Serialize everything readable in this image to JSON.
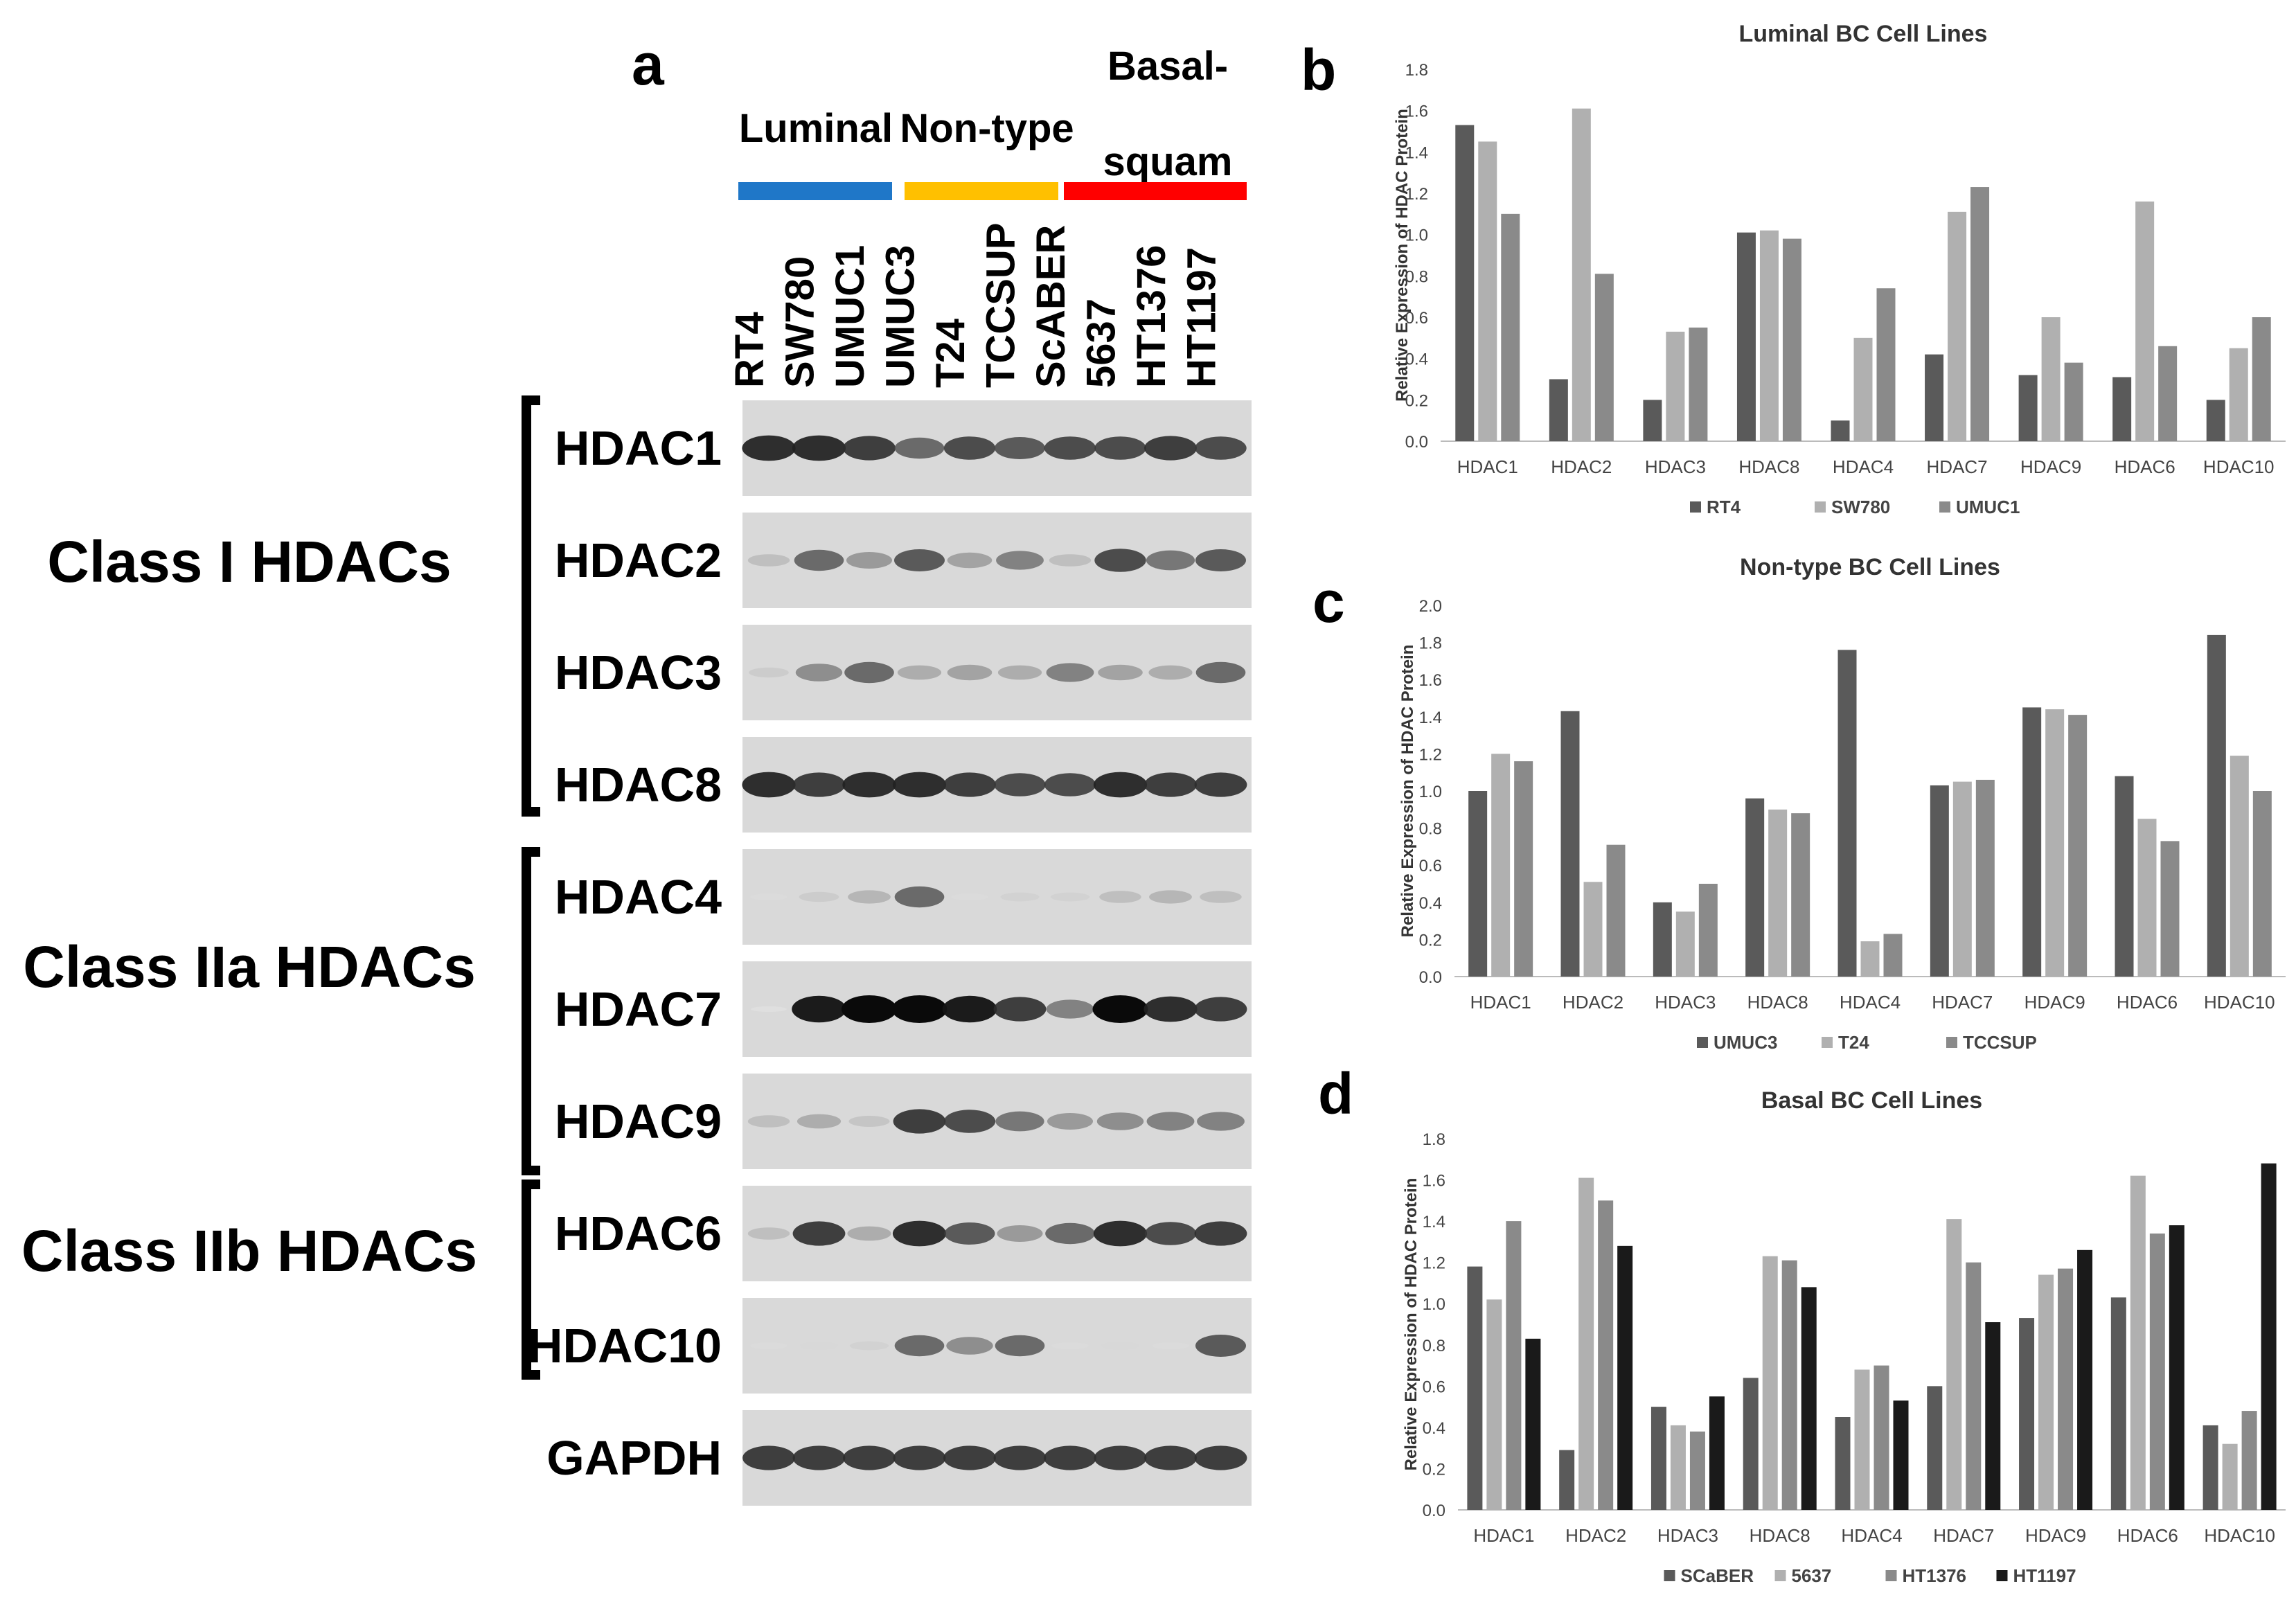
{
  "panel_a": {
    "letter": "a",
    "groups": [
      {
        "name": "Luminal",
        "color": "#1f77c8"
      },
      {
        "name": "Non-type",
        "color": "#ffc000"
      },
      {
        "name": "Basal-squam",
        "line1": "Basal-",
        "line2": "squam",
        "color": "#ff0000"
      }
    ],
    "cell_lines": [
      "RT4",
      "SW780",
      "UMUC1",
      "UMUC3",
      "T24",
      "TCCSUP",
      "ScABER",
      "5637",
      "HT1376",
      "HT1197"
    ],
    "classes": [
      {
        "label": "Class I HDACs"
      },
      {
        "label": "Class IIa HDACs"
      },
      {
        "label": "Class IIb HDACs"
      }
    ],
    "blots": [
      {
        "label": "HDAC1",
        "intensity": [
          0.9,
          0.9,
          0.85,
          0.7,
          0.8,
          0.75,
          0.8,
          0.8,
          0.85,
          0.8
        ]
      },
      {
        "label": "HDAC2",
        "intensity": [
          0.3,
          0.7,
          0.5,
          0.75,
          0.45,
          0.6,
          0.3,
          0.8,
          0.65,
          0.75
        ]
      },
      {
        "label": "HDAC3",
        "intensity": [
          0.2,
          0.55,
          0.7,
          0.4,
          0.45,
          0.4,
          0.6,
          0.45,
          0.4,
          0.7
        ]
      },
      {
        "label": "HDAC8",
        "intensity": [
          0.9,
          0.85,
          0.9,
          0.9,
          0.85,
          0.8,
          0.8,
          0.9,
          0.85,
          0.85
        ]
      },
      {
        "label": "HDAC4",
        "intensity": [
          0.05,
          0.2,
          0.35,
          0.7,
          0.05,
          0.15,
          0.15,
          0.3,
          0.35,
          0.3
        ]
      },
      {
        "label": "HDAC7",
        "intensity": [
          0.0,
          0.95,
          1.0,
          1.0,
          0.95,
          0.85,
          0.6,
          1.0,
          0.9,
          0.85
        ]
      },
      {
        "label": "HDAC9",
        "intensity": [
          0.3,
          0.4,
          0.25,
          0.85,
          0.8,
          0.65,
          0.5,
          0.55,
          0.6,
          0.6
        ]
      },
      {
        "label": "HDAC6",
        "intensity": [
          0.3,
          0.85,
          0.4,
          0.9,
          0.75,
          0.5,
          0.7,
          0.9,
          0.8,
          0.85
        ]
      },
      {
        "label": "HDAC10",
        "intensity": [
          0.05,
          0.1,
          0.15,
          0.7,
          0.55,
          0.7,
          0.05,
          0.1,
          0.05,
          0.75
        ]
      },
      {
        "label": "GAPDH",
        "intensity": [
          0.85,
          0.85,
          0.85,
          0.85,
          0.85,
          0.85,
          0.85,
          0.85,
          0.85,
          0.85
        ]
      }
    ]
  },
  "chart_data": [
    {
      "letter": "b",
      "type": "bar",
      "title": "Luminal BC Cell Lines",
      "ylabel": "Relative Expression of HDAC Protein",
      "xlabel": "",
      "categories": [
        "HDAC1",
        "HDAC2",
        "HDAC3",
        "HDAC8",
        "HDAC4",
        "HDAC7",
        "HDAC9",
        "HDAC6",
        "HDAC10"
      ],
      "ylim": [
        0,
        1.8
      ],
      "yticks": [
        "0.0",
        "0.2",
        "0.4",
        "0.6",
        "0.8",
        "1.0",
        "1.2",
        "1.4",
        "1.6",
        "1.8"
      ],
      "grid": false,
      "legend": "bottom",
      "series": [
        {
          "name": "RT4",
          "color": "#5a5a5a",
          "values": [
            1.53,
            0.3,
            0.2,
            1.01,
            0.1,
            0.42,
            0.32,
            0.31,
            0.2
          ]
        },
        {
          "name": "SW780",
          "color": "#b0b0b0",
          "values": [
            1.45,
            1.61,
            0.53,
            1.02,
            0.5,
            1.11,
            0.6,
            1.16,
            0.45
          ]
        },
        {
          "name": "UMUC1",
          "color": "#8a8a8a",
          "values": [
            1.1,
            0.81,
            0.55,
            0.98,
            0.74,
            1.23,
            0.38,
            0.46,
            0.6
          ]
        }
      ]
    },
    {
      "letter": "c",
      "type": "bar",
      "title": "Non-type BC Cell Lines",
      "ylabel": "Relative Expression of HDAC Protein",
      "xlabel": "",
      "categories": [
        "HDAC1",
        "HDAC2",
        "HDAC3",
        "HDAC8",
        "HDAC4",
        "HDAC7",
        "HDAC9",
        "HDAC6",
        "HDAC10"
      ],
      "ylim": [
        0,
        2.0
      ],
      "yticks": [
        "0.0",
        "0.2",
        "0.4",
        "0.6",
        "0.8",
        "1.0",
        "1.2",
        "1.4",
        "1.6",
        "1.8",
        "2.0"
      ],
      "grid": false,
      "legend": "bottom",
      "series": [
        {
          "name": "UMUC3",
          "color": "#5a5a5a",
          "values": [
            1.0,
            1.43,
            0.4,
            0.96,
            1.76,
            1.03,
            1.45,
            1.08,
            1.84
          ]
        },
        {
          "name": "T24",
          "color": "#b0b0b0",
          "values": [
            1.2,
            0.51,
            0.35,
            0.9,
            0.19,
            1.05,
            1.44,
            0.85,
            1.19
          ]
        },
        {
          "name": "TCCSUP",
          "color": "#8a8a8a",
          "values": [
            1.16,
            0.71,
            0.5,
            0.88,
            0.23,
            1.06,
            1.41,
            0.73,
            1.0
          ]
        }
      ]
    },
    {
      "letter": "d",
      "type": "bar",
      "title": "Basal BC Cell Lines",
      "ylabel": "Relative Expression of HDAC Protein",
      "xlabel": "",
      "categories": [
        "HDAC1",
        "HDAC2",
        "HDAC3",
        "HDAC8",
        "HDAC4",
        "HDAC7",
        "HDAC9",
        "HDAC6",
        "HDAC10"
      ],
      "ylim": [
        0,
        1.8
      ],
      "yticks": [
        "0.0",
        "0.2",
        "0.4",
        "0.6",
        "0.8",
        "1.0",
        "1.2",
        "1.4",
        "1.6",
        "1.8"
      ],
      "grid": false,
      "legend": "bottom",
      "series": [
        {
          "name": "SCaBER",
          "color": "#5a5a5a",
          "values": [
            1.18,
            0.29,
            0.5,
            0.64,
            0.45,
            0.6,
            0.93,
            1.03,
            0.41
          ]
        },
        {
          "name": "5637",
          "color": "#b0b0b0",
          "values": [
            1.02,
            1.61,
            0.41,
            1.23,
            0.68,
            1.41,
            1.14,
            1.62,
            0.32
          ]
        },
        {
          "name": "HT1376",
          "color": "#8a8a8a",
          "values": [
            1.4,
            1.5,
            0.38,
            1.21,
            0.7,
            1.2,
            1.17,
            1.34,
            0.48
          ]
        },
        {
          "name": "HT1197",
          "color": "#1a1a1a",
          "values": [
            0.83,
            1.28,
            0.55,
            1.08,
            0.53,
            0.91,
            1.26,
            1.38,
            1.68
          ]
        }
      ]
    }
  ]
}
